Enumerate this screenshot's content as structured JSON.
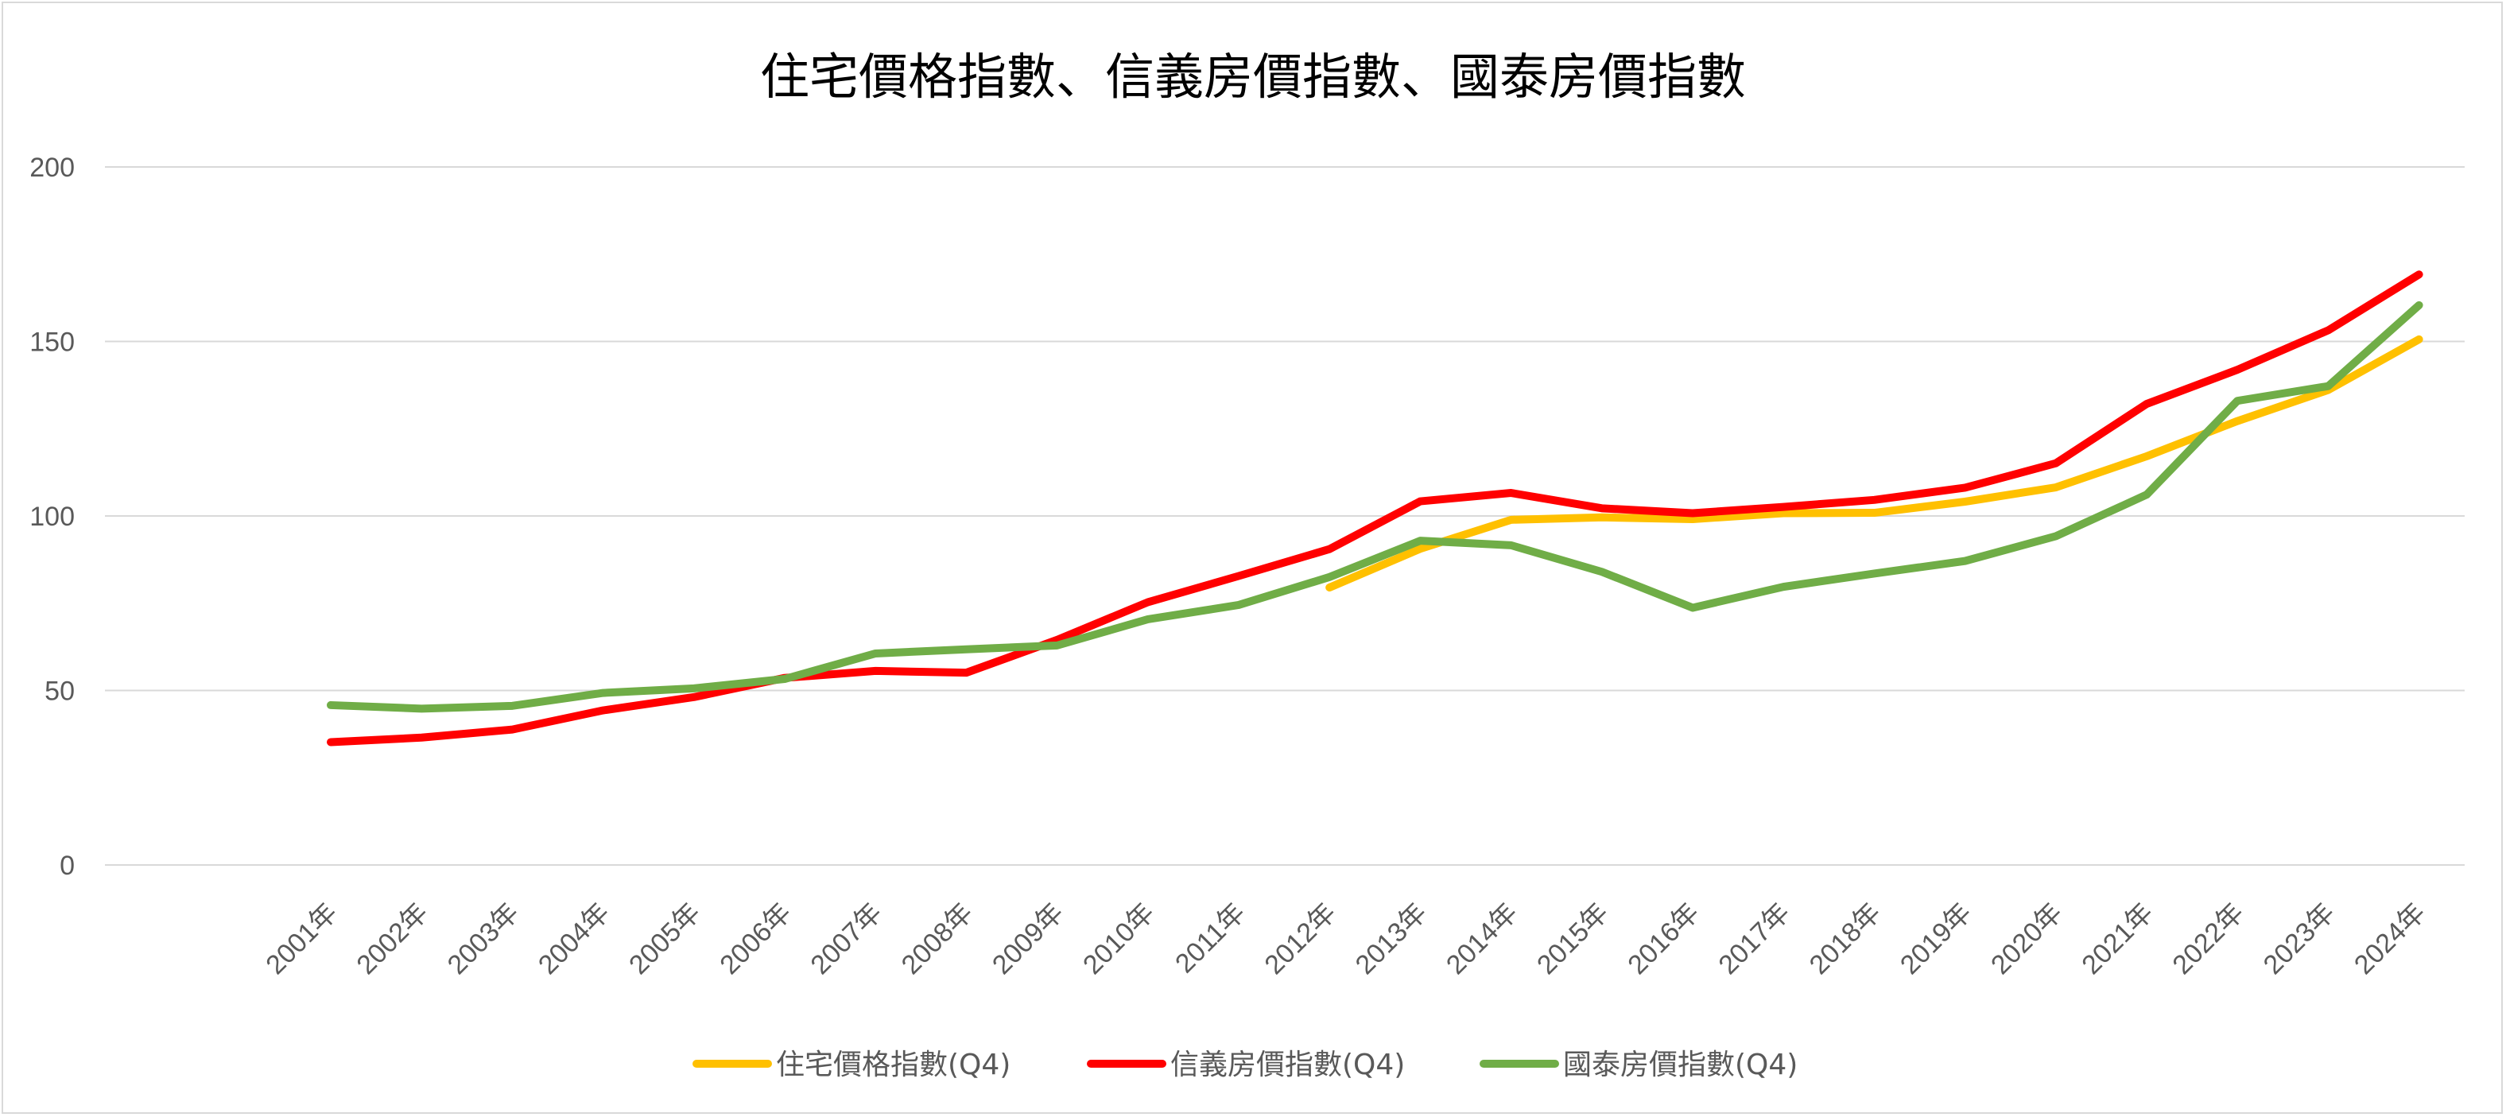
{
  "chart_data": {
    "type": "line",
    "title": "住宅價格指數、信義房價指數、國泰房價指數",
    "categories": [
      "2001年",
      "2002年",
      "2003年",
      "2004年",
      "2005年",
      "2006年",
      "2007年",
      "2008年",
      "2009年",
      "2010年",
      "2011年",
      "2012年",
      "2013年",
      "2014年",
      "2015年",
      "2016年",
      "2017年",
      "2018年",
      "2019年",
      "2020年",
      "2021年",
      "2022年",
      "2023年",
      "2024年"
    ],
    "y_ticks": [
      "0",
      "50",
      "100",
      "150",
      "200"
    ],
    "ylim": [
      0,
      200
    ],
    "grid": true,
    "legend_position": "bottom",
    "series": [
      {
        "name": "住宅價格指數(Q4)",
        "color": "#FFC000",
        "values": [
          null,
          null,
          null,
          null,
          null,
          null,
          null,
          null,
          null,
          null,
          null,
          79.5,
          90.6,
          98.9,
          99.6,
          99.1,
          100.8,
          100.9,
          104.1,
          108.2,
          117.1,
          127.2,
          136.1,
          150.6
        ]
      },
      {
        "name": "信義房價指數(Q4)",
        "color": "#FF0000",
        "values": [
          35.2,
          36.5,
          38.8,
          44.3,
          48.1,
          53.6,
          55.6,
          55.1,
          64.5,
          75.3,
          82.8,
          90.5,
          104.2,
          106.6,
          102.2,
          100.8,
          102.6,
          104.6,
          108.1,
          115.1,
          132.1,
          141.9,
          153.2,
          169.2
        ]
      },
      {
        "name": "國泰房價指數(Q4)",
        "color": "#70AD47",
        "values": [
          45.8,
          44.8,
          45.6,
          49.3,
          50.6,
          53.3,
          60.6,
          61.8,
          62.9,
          70.4,
          74.5,
          82.5,
          92.9,
          91.6,
          84.0,
          73.7,
          79.7,
          83.5,
          87.1,
          94.2,
          106.1,
          133.0,
          137.2,
          160.4
        ]
      }
    ]
  }
}
